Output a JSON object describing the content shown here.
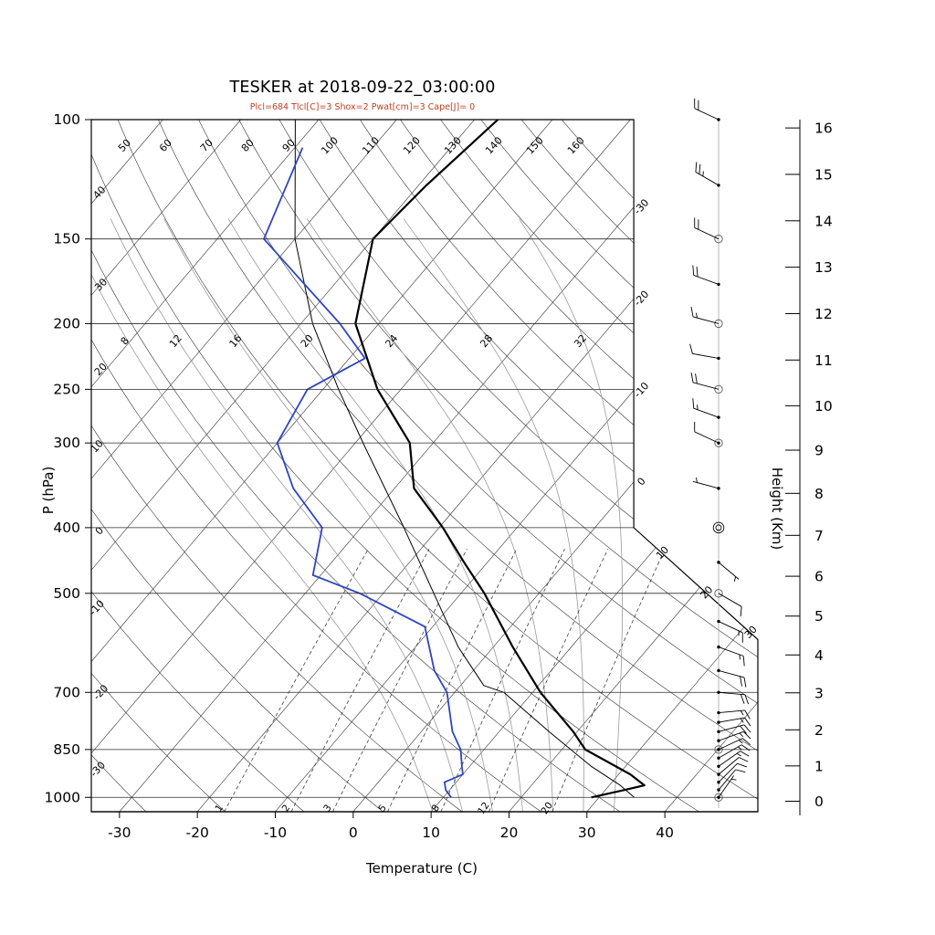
{
  "header": {
    "title": "TESKER at 2018-09-22_03:00:00",
    "params_line": "Plcl=684 Tlcl[C]=3 Shox=2 Pwat[cm]=3 Cape[J]= 0",
    "params_color": "#bf4022"
  },
  "axes": {
    "pressure_label": "P (hPa)",
    "pressure_ticks": [
      100,
      150,
      200,
      250,
      300,
      400,
      500,
      700,
      850,
      1000
    ],
    "temp_label": "Temperature (C)",
    "temp_ticks": [
      -30,
      -20,
      -10,
      0,
      10,
      20,
      30,
      40
    ],
    "height_label": "Height (Km)",
    "height_ticks": [
      0,
      1,
      2,
      3,
      4,
      5,
      6,
      7,
      8,
      9,
      10,
      11,
      12,
      13,
      14,
      15,
      16
    ]
  },
  "background": {
    "isotherms": {
      "min": -110,
      "max": 40,
      "step": 10,
      "right_labels": [
        -30,
        -20,
        -10,
        0,
        10,
        20,
        30
      ]
    },
    "dry_adiabats": {
      "values": [
        -30,
        -20,
        -10,
        0,
        10,
        20,
        30,
        40,
        50,
        60,
        70,
        80,
        90,
        100,
        110,
        120,
        130,
        140,
        150,
        160
      ]
    },
    "moist_adiabats": {
      "values": [
        8,
        12,
        16,
        20,
        24,
        28,
        32
      ],
      "color": "#9a9a9a"
    },
    "mixing_ratio": {
      "values": [
        1,
        2,
        3,
        5,
        8,
        12,
        20
      ]
    }
  },
  "chart_data": {
    "type": "skewt-logp-sounding",
    "station": "TESKER",
    "datetime": "2018-09-22_03:00:00",
    "indices": {
      "Plcl_hPa": 684,
      "Tlcl_C": 3,
      "Showalter": 2,
      "Pwat_cm": 3,
      "Cape_J": 0
    },
    "pressure_range_hPa": [
      100,
      1050
    ],
    "temperature": {
      "pressure": [
        1000,
        975,
        960,
        925,
        850,
        800,
        700,
        600,
        500,
        450,
        400,
        350,
        300,
        250,
        200,
        150,
        125,
        100
      ],
      "temp_c": [
        29,
        32.5,
        34.5,
        31.5,
        23,
        19.5,
        11,
        2.5,
        -7,
        -13,
        -19.5,
        -27.5,
        -33,
        -43,
        -53,
        -60,
        -59,
        -57
      ]
    },
    "dewpoint": {
      "pressure": [
        1000,
        975,
        950,
        925,
        900,
        850,
        800,
        700,
        650,
        560,
        500,
        470,
        400,
        350,
        300,
        250,
        225,
        200,
        150,
        110
      ],
      "temp_c": [
        11,
        9.5,
        8.5,
        10,
        9,
        7,
        4,
        -1,
        -5,
        -11,
        -23,
        -31,
        -35,
        -43,
        -50,
        -52,
        -48,
        -55,
        -74,
        -79
      ]
    },
    "parcel": {
      "pressure": [
        1000,
        960,
        900,
        800,
        700,
        684,
        600,
        500,
        400,
        300,
        250,
        200,
        150,
        100
      ],
      "temp_c": [
        34.5,
        31.4,
        25.6,
        16.4,
        6.3,
        3,
        -4.5,
        -13.5,
        -24.5,
        -39,
        -48,
        -58.5,
        -70,
        -83
      ]
    },
    "winds": [
      {
        "p": 100,
        "dir": 295,
        "spd_kt": 20,
        "marker": "dot"
      },
      {
        "p": 125,
        "dir": 300,
        "spd_kt": 25,
        "marker": "dot"
      },
      {
        "p": 150,
        "dir": 295,
        "spd_kt": 20,
        "marker": "circle"
      },
      {
        "p": 175,
        "dir": 290,
        "spd_kt": 20,
        "marker": "dot"
      },
      {
        "p": 200,
        "dir": 285,
        "spd_kt": 15,
        "marker": "circle"
      },
      {
        "p": 225,
        "dir": 280,
        "spd_kt": 10,
        "marker": "dot"
      },
      {
        "p": 250,
        "dir": 285,
        "spd_kt": 20,
        "marker": "circle"
      },
      {
        "p": 275,
        "dir": 290,
        "spd_kt": 15,
        "marker": "dot"
      },
      {
        "p": 300,
        "dir": 295,
        "spd_kt": 10,
        "marker": "circled-dot"
      },
      {
        "p": 350,
        "dir": 285,
        "spd_kt": 5,
        "marker": "dot"
      },
      {
        "p": 400,
        "dir": 0,
        "spd_kt": 0,
        "marker": "double-circle"
      },
      {
        "p": 450,
        "dir": 130,
        "spd_kt": 5,
        "marker": "dot"
      },
      {
        "p": 500,
        "dir": 120,
        "spd_kt": 10,
        "marker": "circle"
      },
      {
        "p": 550,
        "dir": 115,
        "spd_kt": 15,
        "marker": "dot"
      },
      {
        "p": 600,
        "dir": 110,
        "spd_kt": 15,
        "marker": "dot"
      },
      {
        "p": 650,
        "dir": 105,
        "spd_kt": 20,
        "marker": "dot"
      },
      {
        "p": 700,
        "dir": 95,
        "spd_kt": 20,
        "marker": "dot"
      },
      {
        "p": 750,
        "dir": 85,
        "spd_kt": 15,
        "marker": "dot"
      },
      {
        "p": 775,
        "dir": 80,
        "spd_kt": 15,
        "marker": "dot"
      },
      {
        "p": 800,
        "dir": 75,
        "spd_kt": 20,
        "marker": "dot"
      },
      {
        "p": 825,
        "dir": 70,
        "spd_kt": 15,
        "marker": "dot"
      },
      {
        "p": 850,
        "dir": 65,
        "spd_kt": 15,
        "marker": "circled-dot"
      },
      {
        "p": 875,
        "dir": 60,
        "spd_kt": 15,
        "marker": "dot"
      },
      {
        "p": 900,
        "dir": 55,
        "spd_kt": 15,
        "marker": "dot"
      },
      {
        "p": 925,
        "dir": 50,
        "spd_kt": 10,
        "marker": "dot"
      },
      {
        "p": 950,
        "dir": 45,
        "spd_kt": 10,
        "marker": "dot"
      },
      {
        "p": 975,
        "dir": 40,
        "spd_kt": 10,
        "marker": "dot"
      },
      {
        "p": 1000,
        "dir": 35,
        "spd_kt": 5,
        "marker": "circled-dot"
      }
    ],
    "colors": {
      "temperature": "#000000",
      "dewpoint": "#2f45c0",
      "parcel": "#000000"
    }
  }
}
